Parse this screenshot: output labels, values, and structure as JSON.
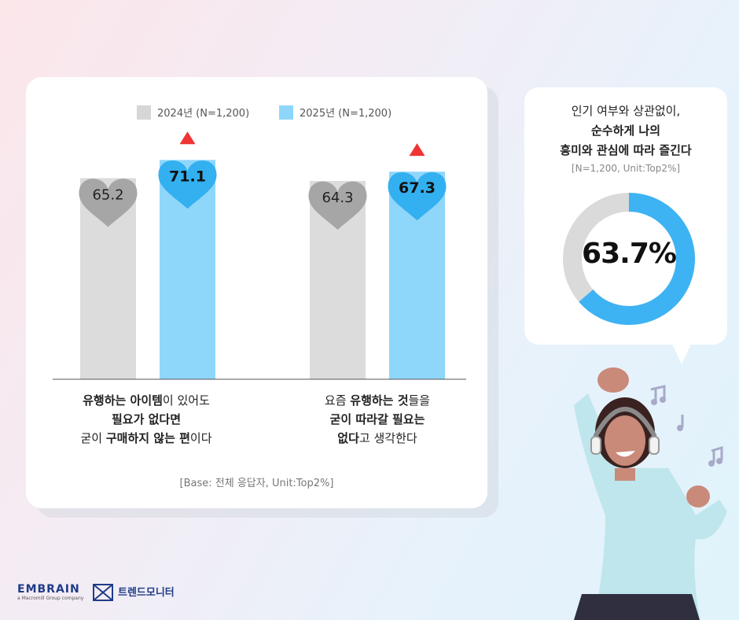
{
  "chart_data": {
    "type": "bar",
    "categories": [
      "cat1",
      "cat2"
    ],
    "series": [
      {
        "name": "2024년 (N=1,200)",
        "color": "#dcdcdc",
        "marker_color": "#a6a6a6",
        "values": [
          65.2,
          64.3
        ]
      },
      {
        "name": "2025년 (N=1,200)",
        "color": "#8fd6fb",
        "marker_color": "#33b0ef",
        "values": [
          71.1,
          67.3
        ]
      }
    ],
    "increase_marker": "red-triangle",
    "marker_shape": "heart",
    "base_note": "[Base: 전체 응답자, Unit:Top2%]"
  },
  "captions": {
    "left": {
      "line1": [
        {
          "t": "유행하는 아이템",
          "b": true
        },
        {
          "t": "이 있어도",
          "b": false
        }
      ],
      "line2": [
        {
          "t": "필요가 없다면",
          "b": true
        }
      ],
      "line3": [
        {
          "t": "굳이 ",
          "b": false
        },
        {
          "t": "구매하지 않는 편",
          "b": true
        },
        {
          "t": "이다",
          "b": false
        }
      ]
    },
    "right": {
      "line1": [
        {
          "t": "요즘 ",
          "b": false
        },
        {
          "t": "유행하는 것",
          "b": true
        },
        {
          "t": "들을",
          "b": false
        }
      ],
      "line2": [
        {
          "t": "굳이 따라갈 필요는",
          "b": true
        }
      ],
      "line3": [
        {
          "t": "없다",
          "b": true
        },
        {
          "t": "고 생각한다",
          "b": false
        }
      ]
    }
  },
  "side_stat": {
    "line1": "인기 여부와 상관없이,",
    "line2": "순수하게 나의",
    "line3": "흥미와 관심에 따라 즐긴다",
    "note": "[N=1,200, Unit:Top2%]",
    "value": 63.7,
    "value_label": "63.7%",
    "ring_color": "#3db3f4",
    "track_color": "#dadada"
  },
  "logos": {
    "brand": "EMBRAIN",
    "brand_sub": "a Macromill Group company",
    "partner": "트렌드모니터"
  },
  "illustration": {
    "icon": "woman-with-headphones-dancing",
    "music_icon": "music-note-icon"
  }
}
